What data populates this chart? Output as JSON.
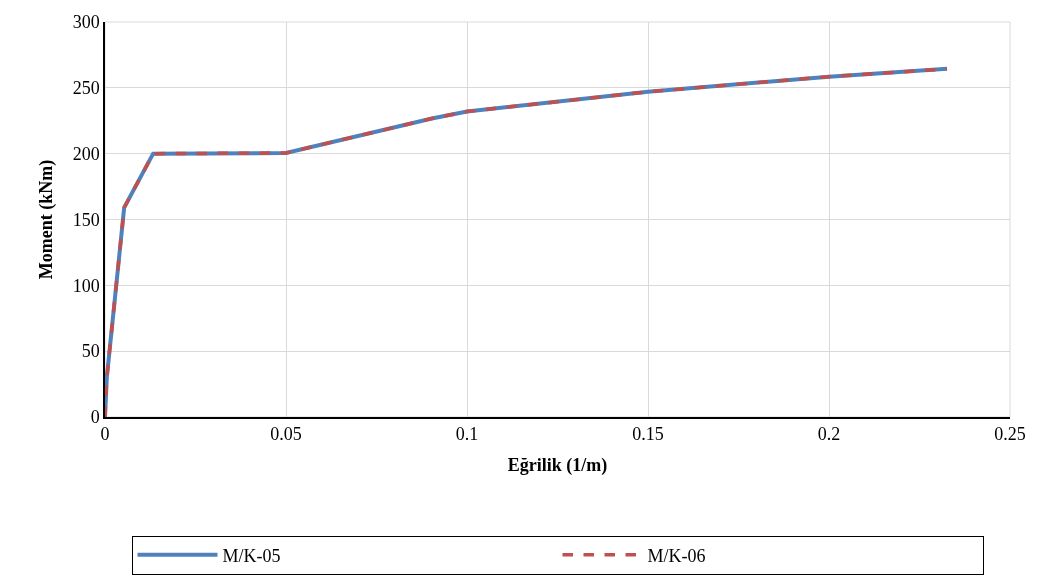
{
  "chart_data": {
    "type": "line",
    "xlabel": "Eğrilik (1/m)",
    "ylabel": "Moment (kNm)",
    "x": [
      0,
      0.0005,
      0.0053,
      0.0133,
      0.05,
      0.0903,
      0.1,
      0.15,
      0.2,
      0.2326
    ],
    "series": [
      {
        "name": "M/K-05",
        "color": "#4f81bd",
        "line_style": "solid",
        "values": [
          0,
          30,
          159,
          200,
          200.5,
          226.7,
          232,
          247,
          258.5,
          264.4
        ]
      },
      {
        "name": "M/K-06",
        "color": "#c0504d",
        "line_style": "dashed",
        "values": [
          0,
          30,
          159,
          200,
          200.5,
          226.7,
          232,
          247,
          258.5,
          264.4
        ]
      }
    ],
    "xlim": [
      0,
      0.25
    ],
    "xticks": [
      0,
      0.05,
      0.1,
      0.15,
      0.2,
      0.25
    ],
    "ylim": [
      0,
      300
    ],
    "yticks": [
      0,
      50,
      100,
      150,
      200,
      250,
      300
    ],
    "grid": true,
    "legend": "bottom",
    "marker": "none"
  }
}
